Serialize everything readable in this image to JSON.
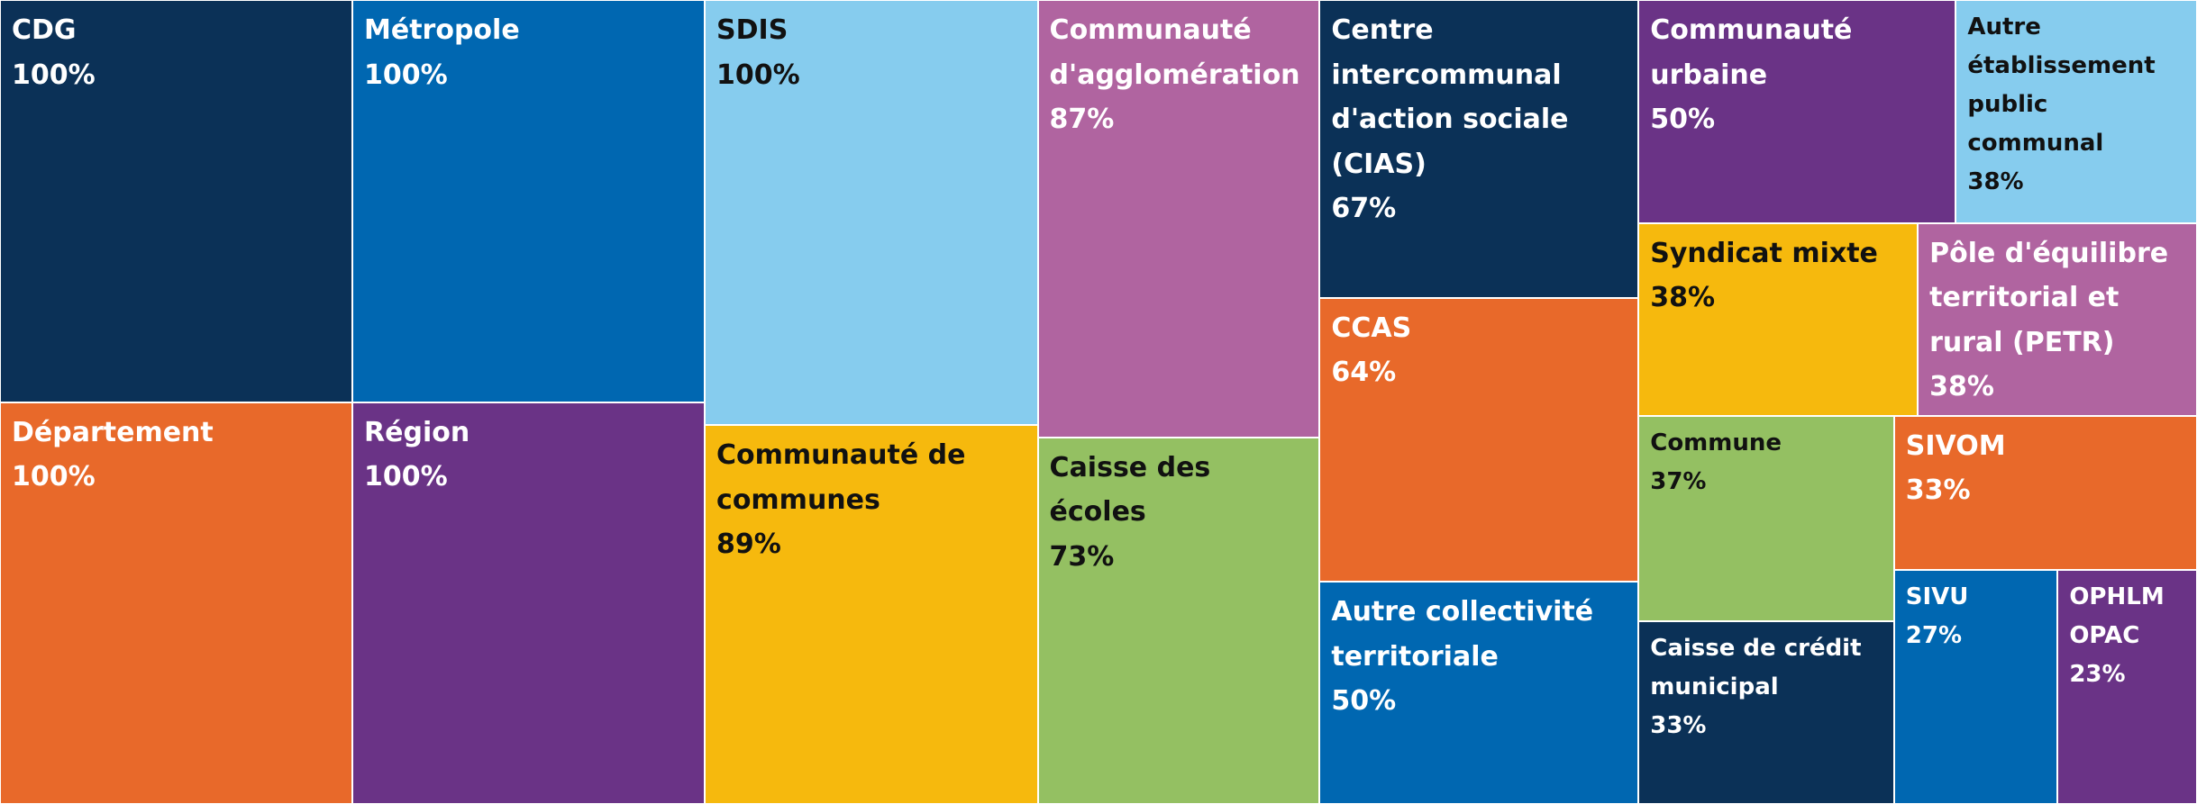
{
  "chart_data": {
    "type": "treemap",
    "categories": [
      "CDG",
      "Département",
      "Métropole",
      "Région",
      "SDIS",
      "Communauté de communes",
      "Communauté d'agglomération",
      "Caisse des écoles",
      "Centre intercommunal d'action sociale (CIAS)",
      "CCAS",
      "Autre collectivité territoriale",
      "Communauté urbaine",
      "Autre établissement public communal",
      "Syndicat mixte",
      "Pôle d'équilibre territorial et rural (PETR)",
      "Commune",
      "Caisse de crédit municipal",
      "SIVOM",
      "SIVU",
      "OPHLM OPAC"
    ],
    "values": [
      100,
      100,
      100,
      100,
      100,
      89,
      87,
      73,
      67,
      64,
      50,
      50,
      38,
      38,
      38,
      37,
      33,
      33,
      27,
      23
    ],
    "value_labels": [
      "100%",
      "100%",
      "100%",
      "100%",
      "100%",
      "89%",
      "87%",
      "73%",
      "67%",
      "64%",
      "50%",
      "50%",
      "38%",
      "38%",
      "38%",
      "37%",
      "33%",
      "33%",
      "27%",
      "23%"
    ],
    "colors": [
      "#0b3157",
      "#e8692a",
      "#0067b1",
      "#6a3386",
      "#86ccee",
      "#f6b90d",
      "#b064a0",
      "#94c062",
      "#0b3157",
      "#e8692a",
      "#0067b1",
      "#6a3386",
      "#86ccee",
      "#f6b90d",
      "#b064a0",
      "#94c062",
      "#0b3157",
      "#e8692a",
      "#0067b1",
      "#6a3386"
    ]
  }
}
